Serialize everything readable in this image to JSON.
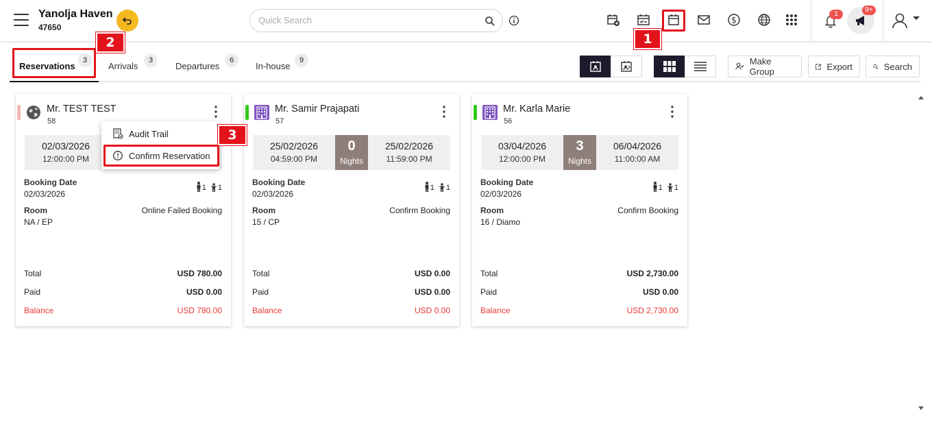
{
  "header": {
    "hotel_name": "Yanolja Haven",
    "hotel_id": "47650",
    "search_placeholder": "Quick Search",
    "notification_count": "1",
    "announcement_count": "9+",
    "icons": [
      "menu-icon",
      "switch-property-icon",
      "search-icon",
      "info-icon",
      "new-reservation-icon",
      "checklist-calendar-icon",
      "calendar-icon",
      "mail-icon",
      "dollar-icon",
      "globe-icon",
      "apps-grid-icon",
      "bell-icon",
      "megaphone-icon",
      "user-icon",
      "chevron-down-icon"
    ]
  },
  "annotations": [
    "1",
    "2",
    "3"
  ],
  "tabs": [
    {
      "label": "Reservations",
      "count": "3",
      "active": true
    },
    {
      "label": "Arrivals",
      "count": "3"
    },
    {
      "label": "Departures",
      "count": "6"
    },
    {
      "label": "In-house",
      "count": "9"
    }
  ],
  "toolbar": {
    "make_group": "Make Group",
    "export": "Export",
    "search": "Search"
  },
  "menu": {
    "audit_trail": "Audit Trail",
    "confirm_reservation": "Confirm Reservation"
  },
  "labels": {
    "booking_date": "Booking Date",
    "room": "Room",
    "total": "Total",
    "paid": "Paid",
    "balance": "Balance",
    "nights": "Nights"
  },
  "cards": [
    {
      "name": "Mr. TEST TEST",
      "id": "58",
      "icon": "globe-icon",
      "status_color": "#f4b6b6",
      "arrival_date": "02/03/2026",
      "arrival_time": "12:00:00 PM",
      "booking_date": "02/03/2026",
      "adults": "1",
      "children": "1",
      "booking_status": "Online Failed Booking",
      "room": "NA / EP",
      "total": "USD 780.00",
      "paid": "USD 0.00",
      "balance": "USD 780.00"
    },
    {
      "name": "Mr. Samir Prajapati",
      "id": "57",
      "icon": "building-icon",
      "status_color": "#2ecc1a",
      "arrival_date": "25/02/2026",
      "arrival_time": "04:59:00 PM",
      "nights": "0",
      "departure_date": "25/02/2026",
      "departure_time": "11:59:00 PM",
      "booking_date": "02/03/2026",
      "adults": "1",
      "children": "1",
      "booking_status": "Confirm Booking",
      "room": "15 / CP",
      "total": "USD 0.00",
      "paid": "USD 0.00",
      "balance": "USD 0.00"
    },
    {
      "name": "Mr. Karla Marie",
      "id": "56",
      "icon": "building-icon",
      "status_color": "#2ecc1a",
      "arrival_date": "03/04/2026",
      "arrival_time": "12:00:00 PM",
      "nights": "3",
      "departure_date": "06/04/2026",
      "departure_time": "11:00:00 AM",
      "booking_date": "02/03/2026",
      "adults": "1",
      "children": "1",
      "booking_status": "Confirm Booking",
      "room": "16 / Diamo",
      "total": "USD 2,730.00",
      "paid": "USD 0.00",
      "balance": "USD 2,730.00"
    }
  ],
  "colors": {
    "accent_dark": "#1c1c2e",
    "balance_red": "#e53935",
    "annotation_red": "#e3131b",
    "nights_bg": "#8f7f7a"
  }
}
